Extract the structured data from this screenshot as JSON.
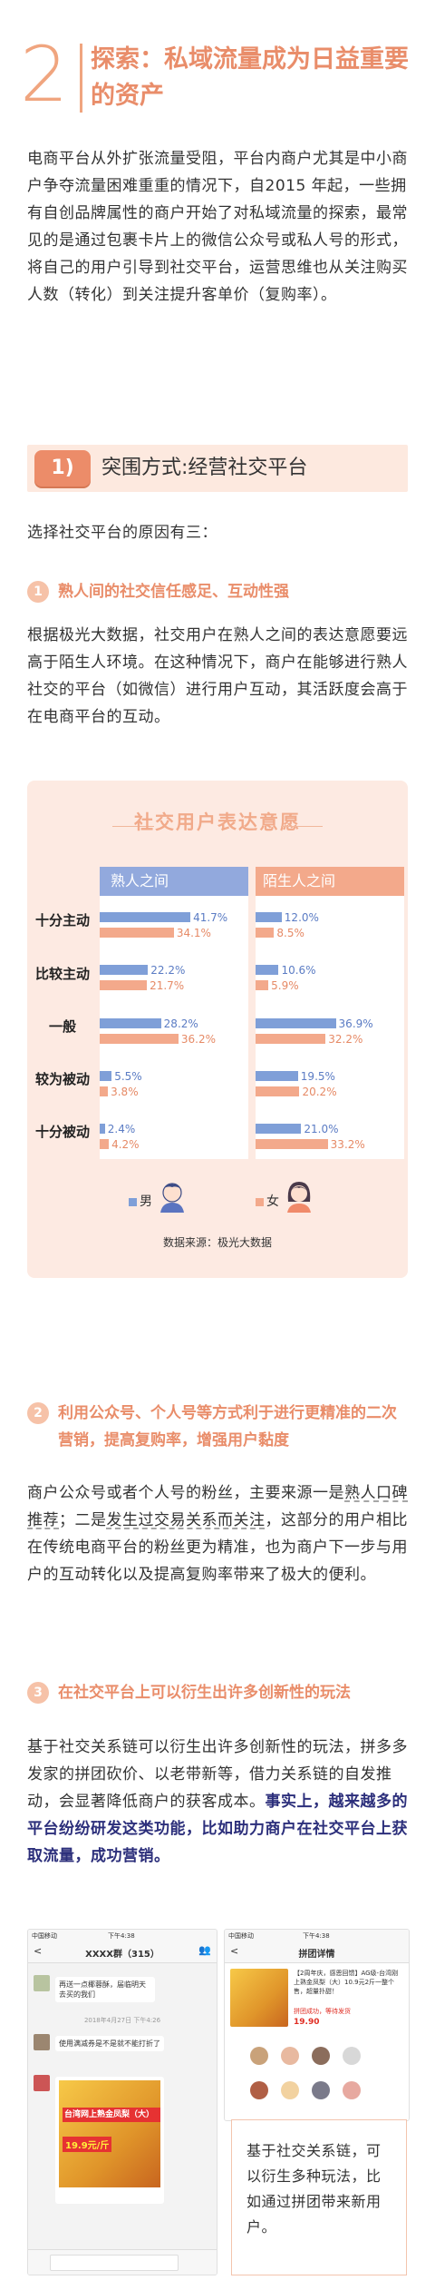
{
  "section": {
    "number": "2",
    "title": "探索：私域流量成为日益重要的资产"
  },
  "intro_paragraph": "电商平台从外扩张流量受阻，平台内商户尤其是中小商户争夺流量困难重重的情况下，自2015 年起，一些拥有自创品牌属性的商户开始了对私域流量的探索，最常见的是通过包裹卡片上的微信公众号或私人号的形式，将自己的用户引导到社交平台，运营思维也从关注购买人数（转化）到关注提升客单价（复购率）。",
  "subsection": {
    "number": "1)",
    "title": "突围方式:经营社交平台"
  },
  "reasons_intro": "选择社交平台的原因有三：",
  "points": [
    {
      "number": "1",
      "title": "熟人间的社交信任感足、互动性强",
      "body": "根据极光大数据，社交用户在熟人之间的表达意愿要远高于陌生人环境。在这种情况下，商户在能够进行熟人社交的平台（如微信）进行用户互动，其活跃度会高于在电商平台的互动。"
    },
    {
      "number": "2",
      "title": "利用公众号、个人号等方式利于进行更精准的二次营销，提高复购率，增强用户黏度",
      "body_part1": "商户公众号或者个人号的粉丝，主要来源一是",
      "body_underline1": "熟人口碑推荐",
      "body_part2": "；二是",
      "body_underline2": "发生过交易关系而关注",
      "body_part3": "，这部分的用户相比在传统电商平台的粉丝更为精准，也为商户下一步与用户的互动转化以及提高复购率带来了极大的便利。"
    },
    {
      "number": "3",
      "title": "在社交平台上可以衍生出许多创新性的玩法",
      "body_plain": "基于社交关系链可以衍生出许多创新性的玩法，拼多多发家的拼团砍价、以老带新等，借力关系链的自发推动，会显著降低商户的获客成本。",
      "body_bold": "事实上，越来越多的平台纷纷研发这类功能，比如助力商户在社交平台上获取流量，成功营销。"
    }
  ],
  "chart_data": {
    "type": "bar",
    "title": "社交用户表达意愿",
    "groups": [
      "熟人之间",
      "陌生人之间"
    ],
    "categories": [
      "十分主动",
      "比较主动",
      "一般",
      "较为被动",
      "十分被动"
    ],
    "series": [
      {
        "name": "男",
        "color": "#7f9fd8",
        "熟人之间": [
          41.7,
          22.2,
          28.2,
          5.5,
          2.4
        ],
        "陌生人之间": [
          12.0,
          10.6,
          36.9,
          19.5,
          21.0
        ]
      },
      {
        "name": "女",
        "color": "#f3a98b",
        "熟人之间": [
          34.1,
          21.7,
          36.2,
          3.8,
          4.2
        ],
        "陌生人之间": [
          8.5,
          5.9,
          32.2,
          20.2,
          33.2
        ]
      }
    ],
    "value_labels": {
      "熟人之间": {
        "男": [
          "41.7%",
          "22.2%",
          "28.2%",
          "5.5%",
          "2.4%"
        ],
        "女": [
          "34.1%",
          "21.7%",
          "36.2%",
          "3.8%",
          "4.2%"
        ]
      },
      "陌生人之间": {
        "男": [
          "12.0%",
          "10.6%",
          "36.9%",
          "19.5%",
          "21.0%"
        ],
        "女": [
          "8.5%",
          "5.9%",
          "32.2%",
          "20.2%",
          "33.2%"
        ]
      }
    },
    "legend": [
      "男",
      "女"
    ],
    "source": "数据来源：极光大数据"
  },
  "screenshots": {
    "left": {
      "status_left": "中国移动",
      "status_time": "下午4:38",
      "title": "XXXX群（315）",
      "msg1": "再送一点椰蓉酥，届临明天去买的我们",
      "timestamp": "2018年4月27日 下午4:26",
      "msg2": "使用满减券是不是就不能打折了",
      "card_title": "台湾网上熟金凤梨（大）",
      "card_price": "19.9元/斤"
    },
    "right": {
      "status_left": "中国移动",
      "status_time": "下午4:38",
      "title": "拼团详情",
      "product_desc": "【2周年庆，感恩回馈】AG级-台湾刚上熟金凤梨（大）10.9元2斤一整个售，超量扑甜！",
      "tag": "拼团成功，等待发货",
      "price": "19.90"
    },
    "note": "基于社交关系链，可以衍生多种玩法，比如通过拼团带来新用户。"
  }
}
